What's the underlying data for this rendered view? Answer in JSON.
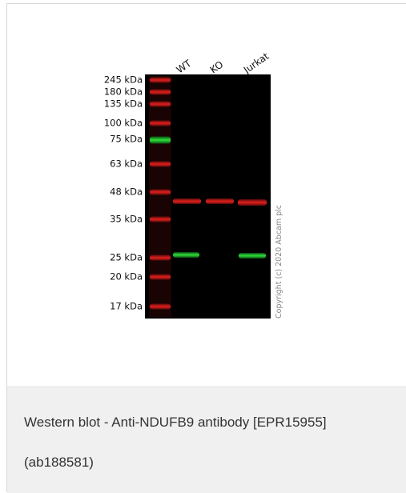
{
  "image": {
    "lane_labels": [
      "WT",
      "KO",
      "Jurkat"
    ],
    "markers": [
      "245 kDa",
      "180 kDa",
      "135 kDa",
      "100 kDa",
      "75 kDa",
      "63 kDa",
      "48 kDa",
      "35 kDa",
      "25 kDa",
      "20 kDa",
      "17 kDa"
    ],
    "copyright": "Copyright (c) 2020 Abcam plc"
  },
  "caption": {
    "lines": [
      "Western blot - Anti-NDUFB9 antibody [EPR15955]",
      "(ab188581)"
    ]
  }
}
